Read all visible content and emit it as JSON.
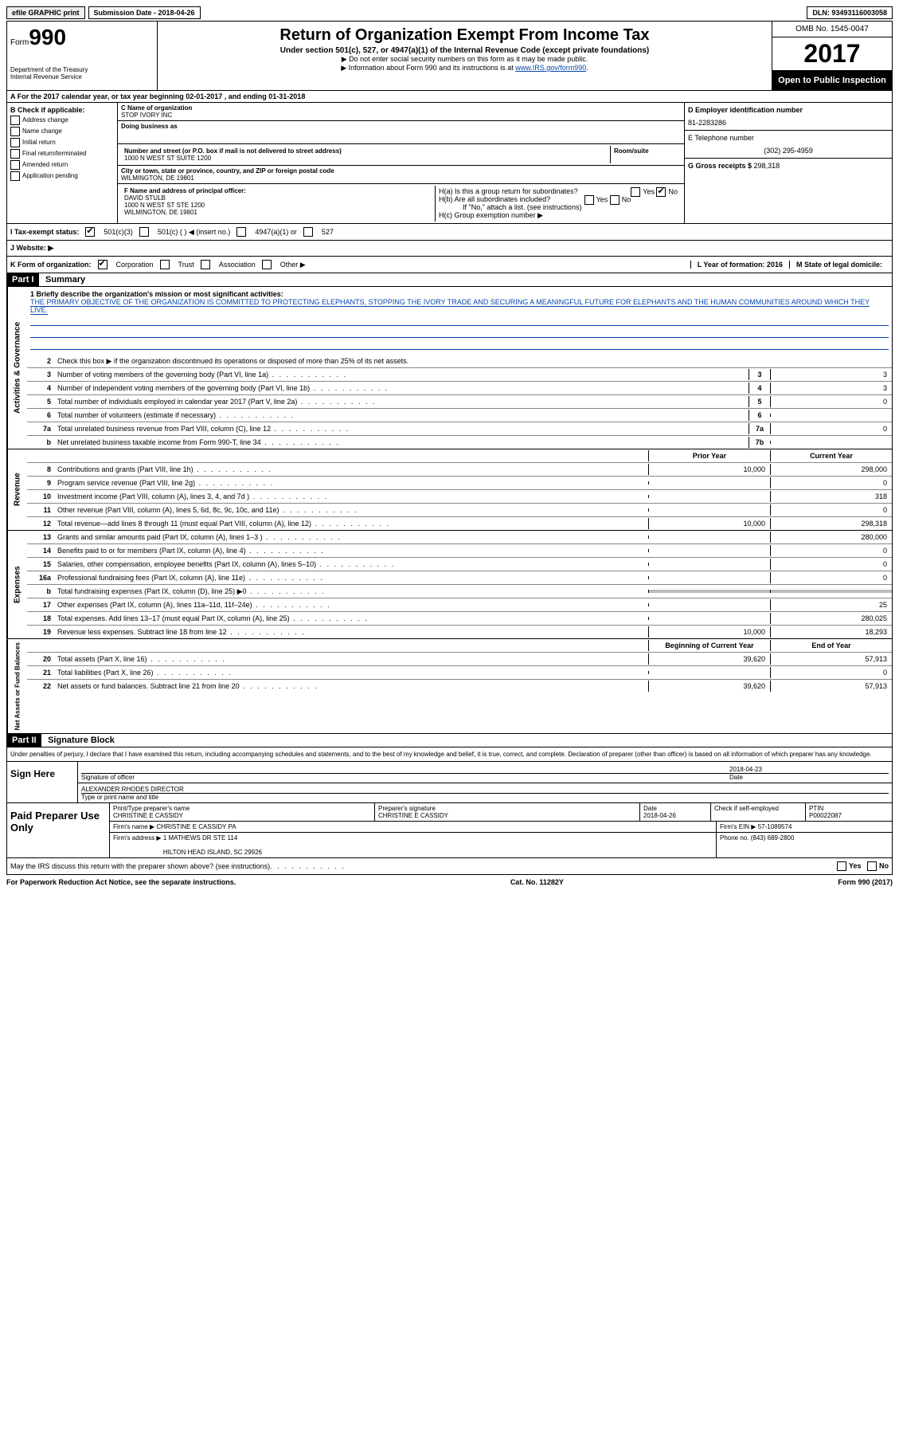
{
  "topbar": {
    "efile": "efile GRAPHIC print",
    "submission": "Submission Date - 2018-04-26",
    "dln": "DLN: 93493116003058"
  },
  "header": {
    "form_label": "Form",
    "form_num": "990",
    "dept": "Department of the Treasury\nInternal Revenue Service",
    "title": "Return of Organization Exempt From Income Tax",
    "subtitle": "Under section 501(c), 527, or 4947(a)(1) of the Internal Revenue Code (except private foundations)",
    "note1": "▶ Do not enter social security numbers on this form as it may be made public.",
    "note2_pre": "▶ Information about Form 990 and its instructions is at ",
    "note2_link": "www.IRS.gov/form990",
    "omb": "OMB No. 1545-0047",
    "year": "2017",
    "open": "Open to Public Inspection"
  },
  "section_a": "A  For the 2017 calendar year, or tax year beginning 02-01-2017   , and ending 01-31-2018",
  "col_b": {
    "header": "B Check if applicable:",
    "items": [
      "Address change",
      "Name change",
      "Initial return",
      "Final return/terminated",
      "Amended return",
      "Application pending"
    ]
  },
  "col_c": {
    "name_label": "C Name of organization",
    "name": "STOP IVORY INC",
    "dba_label": "Doing business as",
    "addr_label": "Number and street (or P.O. box if mail is not delivered to street address)",
    "addr": "1000 N WEST ST SUITE 1200",
    "room_label": "Room/suite",
    "city_label": "City or town, state or province, country, and ZIP or foreign postal code",
    "city": "WILMINGTON, DE  19801",
    "officer_label": "F Name and address of principal officer:",
    "officer": "DAVID STULB\n1000 N WEST ST STE 1200\nWILMINGTON, DE  19801"
  },
  "col_d": {
    "ein_label": "D Employer identification number",
    "ein": "81-2283286",
    "tel_label": "E Telephone number",
    "tel": "(302) 295-4959",
    "gross_label": "G Gross receipts $ ",
    "gross": "298,318"
  },
  "h_section": {
    "ha": "H(a)  Is this a group return for subordinates?",
    "hb": "H(b)  Are all subordinates included?",
    "hb_note": "If \"No,\" attach a list. (see instructions)",
    "hc": "H(c)  Group exemption number ▶"
  },
  "tax_status": {
    "label": "I  Tax-exempt status:",
    "opts": [
      "501(c)(3)",
      "501(c) (  ) ◀ (insert no.)",
      "4947(a)(1) or",
      "527"
    ]
  },
  "website": "J  Website: ▶",
  "k_row": {
    "label": "K Form of organization:",
    "opts": [
      "Corporation",
      "Trust",
      "Association",
      "Other ▶"
    ],
    "l": "L Year of formation: 2016",
    "m": "M State of legal domicile:"
  },
  "part1": {
    "header": "Part I",
    "title": "Summary",
    "mission_label": "1  Briefly describe the organization's mission or most significant activities:",
    "mission": "THE PRIMARY OBJECTIVE OF THE ORGANIZATION IS COMMITTED TO PROTECTING ELEPHANTS, STOPPING THE IVORY TRADE AND SECURING A MEANINGFUL FUTURE FOR ELEPHANTS AND THE HUMAN COMMUNITIES AROUND WHICH THEY LIVE.",
    "line2": "Check this box ▶        if the organization discontinued its operations or disposed of more than 25% of its net assets.",
    "governance": [
      {
        "n": "3",
        "d": "Number of voting members of the governing body (Part VI, line 1a)",
        "b": "3",
        "v": "3"
      },
      {
        "n": "4",
        "d": "Number of independent voting members of the governing body (Part VI, line 1b)",
        "b": "4",
        "v": "3"
      },
      {
        "n": "5",
        "d": "Total number of individuals employed in calendar year 2017 (Part V, line 2a)",
        "b": "5",
        "v": "0"
      },
      {
        "n": "6",
        "d": "Total number of volunteers (estimate if necessary)",
        "b": "6",
        "v": ""
      },
      {
        "n": "7a",
        "d": "Total unrelated business revenue from Part VIII, column (C), line 12",
        "b": "7a",
        "v": "0"
      },
      {
        "n": "b",
        "d": "Net unrelated business taxable income from Form 990-T, line 34",
        "b": "7b",
        "v": ""
      }
    ],
    "col_prior": "Prior Year",
    "col_current": "Current Year",
    "revenue": [
      {
        "n": "8",
        "d": "Contributions and grants (Part VIII, line 1h)",
        "p": "10,000",
        "c": "298,000"
      },
      {
        "n": "9",
        "d": "Program service revenue (Part VIII, line 2g)",
        "p": "",
        "c": "0"
      },
      {
        "n": "10",
        "d": "Investment income (Part VIII, column (A), lines 3, 4, and 7d )",
        "p": "",
        "c": "318"
      },
      {
        "n": "11",
        "d": "Other revenue (Part VIII, column (A), lines 5, 6d, 8c, 9c, 10c, and 11e)",
        "p": "",
        "c": "0"
      },
      {
        "n": "12",
        "d": "Total revenue—add lines 8 through 11 (must equal Part VIII, column (A), line 12)",
        "p": "10,000",
        "c": "298,318"
      }
    ],
    "expenses": [
      {
        "n": "13",
        "d": "Grants and similar amounts paid (Part IX, column (A), lines 1–3 )",
        "p": "",
        "c": "280,000"
      },
      {
        "n": "14",
        "d": "Benefits paid to or for members (Part IX, column (A), line 4)",
        "p": "",
        "c": "0"
      },
      {
        "n": "15",
        "d": "Salaries, other compensation, employee benefits (Part IX, column (A), lines 5–10)",
        "p": "",
        "c": "0"
      },
      {
        "n": "16a",
        "d": "Professional fundraising fees (Part IX, column (A), line 11e)",
        "p": "",
        "c": "0"
      },
      {
        "n": "b",
        "d": "Total fundraising expenses (Part IX, column (D), line 25) ▶0",
        "p": "shaded",
        "c": "shaded"
      },
      {
        "n": "17",
        "d": "Other expenses (Part IX, column (A), lines 11a–11d, 11f–24e)",
        "p": "",
        "c": "25"
      },
      {
        "n": "18",
        "d": "Total expenses. Add lines 13–17 (must equal Part IX, column (A), line 25)",
        "p": "",
        "c": "280,025"
      },
      {
        "n": "19",
        "d": "Revenue less expenses. Subtract line 18 from line 12",
        "p": "10,000",
        "c": "18,293"
      }
    ],
    "col_begin": "Beginning of Current Year",
    "col_end": "End of Year",
    "netassets": [
      {
        "n": "20",
        "d": "Total assets (Part X, line 16)",
        "p": "39,620",
        "c": "57,913"
      },
      {
        "n": "21",
        "d": "Total liabilities (Part X, line 26)",
        "p": "",
        "c": "0"
      },
      {
        "n": "22",
        "d": "Net assets or fund balances. Subtract line 21 from line 20",
        "p": "39,620",
        "c": "57,913"
      }
    ]
  },
  "part2": {
    "header": "Part II",
    "title": "Signature Block",
    "declaration": "Under penalties of perjury, I declare that I have examined this return, including accompanying schedules and statements, and to the best of my knowledge and belief, it is true, correct, and complete. Declaration of preparer (other than officer) is based on all information of which preparer has any knowledge.",
    "sign_here": "Sign Here",
    "sig_officer": "Signature of officer",
    "date": "Date",
    "date_val": "2018-04-23",
    "name_title": "ALEXANDER RHODES  DIRECTOR",
    "name_title_label": "Type or print name and title",
    "paid_prep": "Paid Preparer Use Only",
    "prep_name_label": "Print/Type preparer's name",
    "prep_name": "CHRISTINE E CASSIDY",
    "prep_sig_label": "Preparer's signature",
    "prep_sig": "CHRISTINE E CASSIDY",
    "prep_date_label": "Date",
    "prep_date": "2018-04-26",
    "self_emp": "Check        if self-employed",
    "ptin_label": "PTIN",
    "ptin": "P00022087",
    "firm_name_label": "Firm's name    ▶",
    "firm_name": "CHRISTINE E CASSIDY PA",
    "firm_ein_label": "Firm's EIN ▶",
    "firm_ein": "57-1089574",
    "firm_addr_label": "Firm's address ▶",
    "firm_addr": "1 MATHEWS DR STE 114\n\nHILTON HEAD ISLAND, SC  29926",
    "firm_phone_label": "Phone no.",
    "firm_phone": "(843) 689-2800"
  },
  "footer": {
    "discuss": "May the IRS discuss this return with the preparer shown above? (see instructions)",
    "paperwork": "For Paperwork Reduction Act Notice, see the separate instructions.",
    "cat": "Cat. No. 11282Y",
    "form": "Form 990 (2017)"
  }
}
